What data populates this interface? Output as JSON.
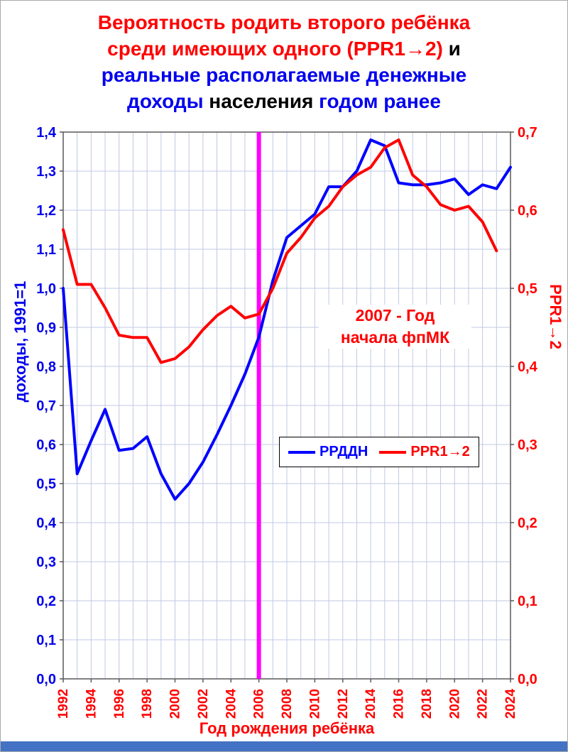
{
  "page": {
    "footer_bar_color": "#4472c4"
  },
  "title": {
    "lines": [
      {
        "segments": [
          {
            "text": "Вероятность родить второго ребёнка",
            "color": "#ff0000"
          }
        ]
      },
      {
        "segments": [
          {
            "text": "среди имеющих одного (PPR1→2)",
            "color": "#ff0000"
          },
          {
            "text": " и",
            "color": "#000000"
          }
        ]
      },
      {
        "segments": [
          {
            "text": "реальные располагаемые денежные",
            "color": "#0000ee"
          }
        ]
      },
      {
        "segments": [
          {
            "text": "доходы",
            "color": "#0000ee"
          },
          {
            "text": " населения ",
            "color": "#000000"
          },
          {
            "text": "годом ранее",
            "color": "#0000ee"
          }
        ]
      }
    ]
  },
  "chart_data": {
    "type": "line",
    "x_label": "Год рождения ребёнка",
    "x_label_color": "#ff0000",
    "x_range": [
      1992,
      2024
    ],
    "x_tick_step": 2,
    "x_tick_color": "#ff0000",
    "grid": true,
    "grid_color": "#c0c8e4",
    "plot_border_color": "#595959",
    "left_axis": {
      "label": "доходы, 1991=1",
      "min": 0.0,
      "max": 1.4,
      "step": 0.1,
      "color": "#0000ee"
    },
    "right_axis": {
      "label": "PPR1→2",
      "min": 0.0,
      "max": 0.7,
      "step": 0.1,
      "color": "#ff0000"
    },
    "vline": {
      "x": 2006,
      "color": "#ff00ff",
      "width": 6
    },
    "annotation": {
      "line1": "2007 - Год",
      "line2": "начала фпМК",
      "color": "#ff0000"
    },
    "legend_position": "inside-center-lower",
    "series": [
      {
        "name": "РРДДН",
        "axis": "left",
        "color": "#0000ff",
        "x_start": 1992,
        "values": [
          1.0,
          0.525,
          0.61,
          0.69,
          0.585,
          0.59,
          0.62,
          0.525,
          0.46,
          0.5,
          0.555,
          0.625,
          0.7,
          0.78,
          0.875,
          1.02,
          1.13,
          1.16,
          1.19,
          1.26,
          1.26,
          1.3,
          1.38,
          1.365,
          1.27,
          1.265,
          1.265,
          1.27,
          1.28,
          1.24,
          1.265,
          1.255,
          1.31
        ]
      },
      {
        "name": "PPR1→2",
        "axis": "right",
        "color": "#ff0000",
        "x_start": 1992,
        "values": [
          0.575,
          0.505,
          0.505,
          0.475,
          0.44,
          0.437,
          0.437,
          0.405,
          0.41,
          0.425,
          0.447,
          0.465,
          0.477,
          0.462,
          0.467,
          0.5,
          0.545,
          0.565,
          0.59,
          0.605,
          0.63,
          0.645,
          0.655,
          0.68,
          0.69,
          0.645,
          0.63,
          0.607,
          0.6,
          0.605,
          0.585,
          0.548
        ]
      }
    ]
  }
}
